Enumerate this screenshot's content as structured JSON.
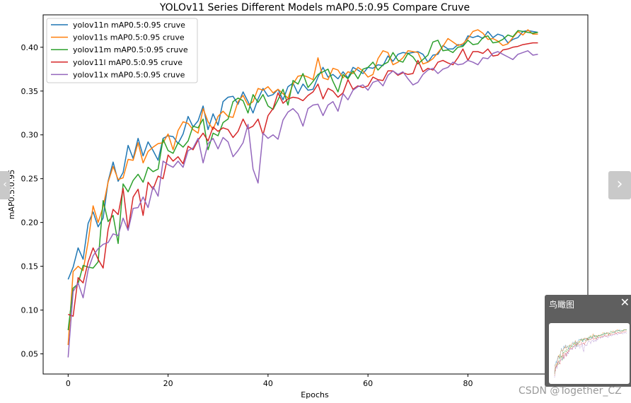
{
  "chart_data": {
    "type": "line",
    "title": "YOLOv11 Series Different Models mAP0.5:0.95 Compare Cruve",
    "xlabel": "Epochs",
    "ylabel": "mAP0.5:0.95",
    "xlim": [
      -5,
      104
    ],
    "ylim": [
      0.027,
      0.437
    ],
    "xticks": [
      0,
      20,
      40,
      60,
      80
    ],
    "xtick_labels": [
      "0",
      "20",
      "40",
      "60",
      "80"
    ],
    "yticks": [
      0.05,
      0.1,
      0.15,
      0.2,
      0.25,
      0.3,
      0.35,
      0.4
    ],
    "ytick_labels": [
      "0.05",
      "0.10",
      "0.15",
      "0.20",
      "0.25",
      "0.30",
      "0.35",
      "0.40"
    ],
    "grid": false,
    "legend_position": "top-left",
    "series": [
      {
        "name": "yolov11n mAP0.5:0.95 cruve",
        "color": "#1f77b4",
        "values": [
          0.135,
          0.149,
          0.171,
          0.158,
          0.199,
          0.212,
          0.195,
          0.205,
          0.247,
          0.269,
          0.247,
          0.257,
          0.288,
          0.273,
          0.296,
          0.276,
          0.292,
          0.282,
          0.271,
          0.296,
          0.299,
          0.298,
          0.29,
          0.301,
          0.321,
          0.309,
          0.316,
          0.333,
          0.306,
          0.324,
          0.311,
          0.338,
          0.343,
          0.344,
          0.335,
          0.349,
          0.338,
          0.325,
          0.341,
          0.353,
          0.344,
          0.346,
          0.352,
          0.34,
          0.355,
          0.359,
          0.347,
          0.358,
          0.351,
          0.352,
          0.366,
          0.377,
          0.366,
          0.369,
          0.364,
          0.372,
          0.365,
          0.377,
          0.374,
          0.37,
          0.377,
          0.376,
          0.38,
          0.379,
          0.39,
          0.384,
          0.392,
          0.394,
          0.393,
          0.394,
          0.395,
          0.392,
          0.383,
          0.391,
          0.392,
          0.402,
          0.398,
          0.398,
          0.403,
          0.402,
          0.413,
          0.411,
          0.413,
          0.41,
          0.418,
          0.411,
          0.415,
          0.413,
          0.405,
          0.409,
          0.411,
          0.418,
          0.419,
          0.418,
          0.417
        ]
      },
      {
        "name": "yolov11s mAP0.5:0.95 cruve",
        "color": "#ff7f0e",
        "values": [
          0.06,
          0.144,
          0.15,
          0.145,
          0.178,
          0.219,
          0.2,
          0.218,
          0.246,
          0.264,
          0.249,
          0.251,
          0.272,
          0.271,
          0.291,
          0.268,
          0.281,
          0.286,
          0.29,
          0.291,
          0.301,
          0.283,
          0.305,
          0.315,
          0.313,
          0.306,
          0.302,
          0.33,
          0.315,
          0.306,
          0.321,
          0.327,
          0.321,
          0.32,
          0.338,
          0.345,
          0.334,
          0.338,
          0.353,
          0.351,
          0.355,
          0.348,
          0.352,
          0.347,
          0.342,
          0.358,
          0.367,
          0.368,
          0.366,
          0.363,
          0.388,
          0.365,
          0.363,
          0.376,
          0.374,
          0.365,
          0.372,
          0.37,
          0.377,
          0.373,
          0.366,
          0.369,
          0.387,
          0.396,
          0.394,
          0.38,
          0.383,
          0.388,
          0.396,
          0.395,
          0.394,
          0.381,
          0.383,
          0.387,
          0.394,
          0.401,
          0.41,
          0.406,
          0.402,
          0.404,
          0.41,
          0.418,
          0.42,
          0.416,
          0.409,
          0.41,
          0.407,
          0.402,
          0.404,
          0.411,
          0.418,
          0.414,
          0.42,
          0.415,
          0.415
        ]
      },
      {
        "name": "yolov11m mAP0.5:0.95 cruve",
        "color": "#2ca02c",
        "values": [
          0.077,
          0.125,
          0.13,
          0.151,
          0.149,
          0.148,
          0.155,
          0.225,
          0.201,
          0.208,
          0.176,
          0.244,
          0.235,
          0.248,
          0.255,
          0.246,
          0.263,
          0.258,
          0.261,
          0.295,
          0.282,
          0.279,
          0.291,
          0.286,
          0.293,
          0.31,
          0.308,
          0.318,
          0.283,
          0.302,
          0.299,
          0.314,
          0.318,
          0.338,
          0.342,
          0.339,
          0.325,
          0.346,
          0.337,
          0.346,
          0.333,
          0.329,
          0.34,
          0.352,
          0.334,
          0.362,
          0.358,
          0.37,
          0.354,
          0.361,
          0.369,
          0.372,
          0.375,
          0.361,
          0.349,
          0.369,
          0.364,
          0.373,
          0.364,
          0.375,
          0.377,
          0.383,
          0.374,
          0.38,
          0.383,
          0.394,
          0.385,
          0.383,
          0.393,
          0.389,
          0.381,
          0.386,
          0.391,
          0.406,
          0.408,
          0.396,
          0.397,
          0.394,
          0.4,
          0.401,
          0.408,
          0.403,
          0.404,
          0.411,
          0.413,
          0.405,
          0.406,
          0.409,
          0.414,
          0.412,
          0.419,
          0.418,
          0.417,
          0.416,
          0.417
        ]
      },
      {
        "name": "yolov11l mAP0.5:0.95 cruve",
        "color": "#d62728",
        "values": [
          0.095,
          0.093,
          0.137,
          0.131,
          0.155,
          0.171,
          0.158,
          0.148,
          0.192,
          0.215,
          0.209,
          0.239,
          0.192,
          0.229,
          0.238,
          0.208,
          0.246,
          0.238,
          0.253,
          0.25,
          0.277,
          0.27,
          0.275,
          0.267,
          0.287,
          0.283,
          0.294,
          0.302,
          0.293,
          0.309,
          0.304,
          0.308,
          0.306,
          0.297,
          0.304,
          0.318,
          0.307,
          0.31,
          0.318,
          0.3,
          0.322,
          0.33,
          0.348,
          0.336,
          0.341,
          0.343,
          0.342,
          0.339,
          0.345,
          0.349,
          0.358,
          0.341,
          0.353,
          0.35,
          0.343,
          0.348,
          0.363,
          0.352,
          0.356,
          0.354,
          0.356,
          0.366,
          0.363,
          0.362,
          0.373,
          0.373,
          0.368,
          0.371,
          0.369,
          0.37,
          0.385,
          0.372,
          0.376,
          0.374,
          0.383,
          0.385,
          0.382,
          0.38,
          0.388,
          0.398,
          0.385,
          0.395,
          0.395,
          0.393,
          0.398,
          0.39,
          0.391,
          0.397,
          0.398,
          0.4,
          0.401,
          0.403,
          0.404,
          0.405,
          0.405
        ]
      },
      {
        "name": "yolov11x mAP0.5:0.95 cruve",
        "color": "#9467bd",
        "values": [
          0.046,
          0.121,
          0.131,
          0.114,
          0.146,
          0.162,
          0.17,
          0.175,
          0.177,
          0.187,
          0.185,
          0.205,
          0.191,
          0.216,
          0.217,
          0.229,
          0.217,
          0.241,
          0.23,
          0.27,
          0.266,
          0.263,
          0.27,
          0.263,
          0.282,
          0.285,
          0.296,
          0.268,
          0.29,
          0.296,
          0.284,
          0.297,
          0.292,
          0.275,
          0.282,
          0.291,
          0.312,
          0.261,
          0.245,
          0.302,
          0.296,
          0.3,
          0.295,
          0.317,
          0.326,
          0.33,
          0.324,
          0.31,
          0.33,
          0.334,
          0.335,
          0.322,
          0.334,
          0.338,
          0.327,
          0.347,
          0.34,
          0.351,
          0.355,
          0.357,
          0.351,
          0.36,
          0.362,
          0.356,
          0.368,
          0.373,
          0.369,
          0.372,
          0.364,
          0.357,
          0.36,
          0.369,
          0.374,
          0.376,
          0.37,
          0.375,
          0.377,
          0.383,
          0.38,
          0.381,
          0.385,
          0.383,
          0.38,
          0.388,
          0.387,
          0.393,
          0.395,
          0.392,
          0.389,
          0.386,
          0.392,
          0.394,
          0.396,
          0.391,
          0.392
        ]
      }
    ]
  },
  "ui": {
    "nav_left_icon": "chevron-left-icon",
    "nav_left_glyph": "‹",
    "nav_right_icon": "chevron-right-icon",
    "nav_right_glyph": "›",
    "overview_title": "鸟瞰图",
    "overview_close_glyph": "✕",
    "watermark": "CSDN @Together_CZ"
  }
}
